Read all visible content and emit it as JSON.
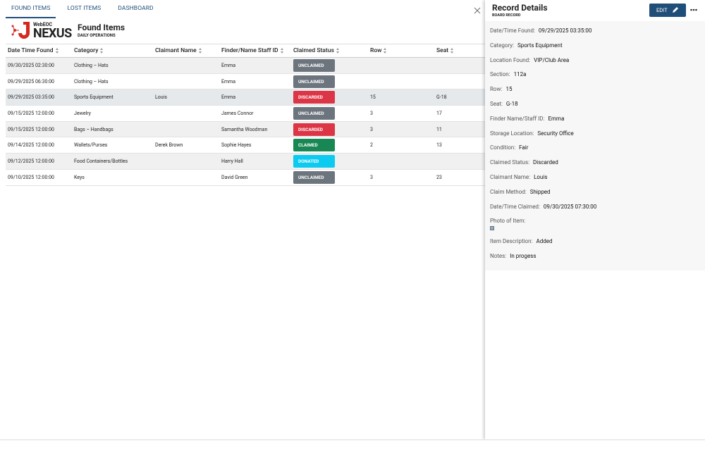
{
  "tabs": [
    "FOUND ITEMS",
    "LOST ITEMS",
    "DASHBOARD"
  ],
  "logo": {
    "brand": "WebEOC",
    "product": "NEXUS"
  },
  "page": {
    "title": "Found Items",
    "subtitle": "DAILY OPERATIONS"
  },
  "table": {
    "columns": [
      "Date Time Found",
      "Category",
      "Claimant Name",
      "Finder/Name Staff ID",
      "Claimed Status",
      "Row",
      "Seat"
    ],
    "rows": [
      [
        "09/30/2025 02:30:00",
        "Clothing – Hats",
        null,
        "Emma",
        {
          "label": "UNCLAIMED",
          "color": "#6c757d"
        },
        null,
        null
      ],
      [
        "09/29/2025 06:30:00",
        "Clothing – Hats",
        null,
        "Emma",
        {
          "label": "UNCLAIMED",
          "color": "#6c757d"
        },
        null,
        null
      ],
      [
        "09/29/2025 03:35:00",
        "Sports Equipment",
        "Louis",
        "Emma",
        {
          "label": "DISCARDED",
          "color": "#dc3545"
        },
        "15",
        "G-18"
      ],
      [
        "09/15/2025 12:00:00",
        "Jewelry",
        null,
        "James Connor",
        {
          "label": "UNCLAIMED",
          "color": "#6c757d"
        },
        "3",
        "17"
      ],
      [
        "09/15/2025 12:00:00",
        "Bags – Handbags",
        null,
        "Samantha Woodman",
        {
          "label": "DISCARDED",
          "color": "#dc3545"
        },
        "3",
        "11"
      ],
      [
        "09/14/2025 12:00:00",
        "Wallets/Purses",
        "Derek Brown",
        "Sophie Hayes",
        {
          "label": "CLAIMED",
          "color": "#198754"
        },
        "2",
        "13"
      ],
      [
        "09/12/2025 12:00:00",
        "Food Containers/Bottles",
        null,
        "Harry Hall",
        {
          "label": "DONATED",
          "color": "#0dcaf0"
        },
        null,
        null
      ],
      [
        "09/10/2025 12:00:00",
        "Keys",
        null,
        "David Green",
        {
          "label": "UNCLAIMED",
          "color": "#6c757d"
        },
        "3",
        "23"
      ]
    ]
  },
  "details": {
    "title": "Record Details",
    "subtitle": "BOARD RECORD",
    "edit": "EDIT",
    "fields": [
      {
        "label": "Date/Time Found:",
        "value": "09/29/2025 03:35:00"
      },
      {
        "label": "Category:",
        "value": "Sports Equipment"
      },
      {
        "label": "Location Found:",
        "value": "VIP/Club Area"
      },
      {
        "label": "Section:",
        "value": "112a"
      },
      {
        "label": "Row:",
        "value": "15"
      },
      {
        "label": "Seat:",
        "value": "G-18"
      },
      {
        "label": "Finder Name/Staff ID:",
        "value": "Emma"
      },
      {
        "label": "Storage Location:",
        "value": "Security Office"
      },
      {
        "label": "Condition:",
        "value": "Fair"
      },
      {
        "label": "Claimed Status:",
        "value": "Discarded"
      },
      {
        "label": "Claimant Name:",
        "value": "Louis"
      },
      {
        "label": "Claim Method:",
        "value": "Shipped"
      },
      {
        "label": "Date/Time Claimed:",
        "value": "09/30/2025 07:30:00"
      },
      {
        "label": "Photo of Item:"
      },
      {
        "label": "Item Description:",
        "value": "Added"
      },
      {
        "label": "Notes:",
        "value": "In progess"
      }
    ]
  }
}
